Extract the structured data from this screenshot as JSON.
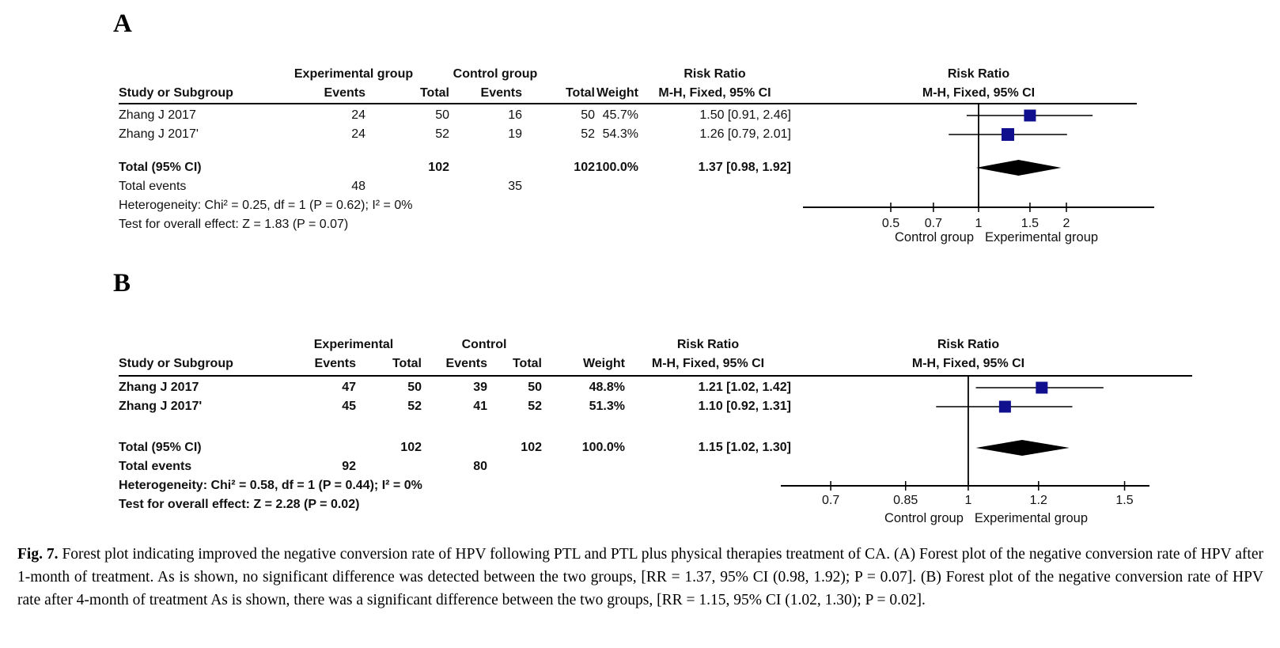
{
  "caption": {
    "tag": "Fig. 7.",
    "text": "Forest plot indicating improved the negative conversion rate of HPV following PTL and PTL plus physical therapies treatment of CA. (A) Forest plot of the negative conversion rate of HPV after 1-month of treatment. As is shown, no significant difference was detected between the two groups, [RR = 1.37, 95% CI (0.98, 1.92); P = 0.07]. (B) Forest plot of the negative conversion rate of HPV rate after 4-month of treatment As is shown, there was a significant difference between the two groups, [RR = 1.15, 95% CI (1.02, 1.30); P = 0.02]."
  },
  "colors": {
    "marker": "#10108f",
    "diamond": "#000000",
    "line": "#000000"
  },
  "chart_data": [
    {
      "type": "forest",
      "label": "A",
      "group1": "Experimental group",
      "group2": "Control group",
      "columns": {
        "study": "Study or Subgroup",
        "events1": "Events",
        "total1": "Total",
        "events2": "Events",
        "total2": "Total",
        "weight": "Weight",
        "effect": "Risk Ratio",
        "method": "M-H, Fixed, 95% CI"
      },
      "plot_header1": "Risk Ratio",
      "plot_header2": "M-H, Fixed, 95% CI",
      "studies": [
        {
          "study": "Zhang J 2017",
          "g1_events": "24",
          "g1_total": "50",
          "g2_events": "16",
          "g2_total": "50",
          "weight": "45.7%",
          "weight_value": 45.7,
          "rr_text": "1.50 [0.91, 2.46]",
          "rr": 1.5,
          "ci_low": 0.91,
          "ci_high": 2.46
        },
        {
          "study": "Zhang J 2017'",
          "g1_events": "24",
          "g1_total": "52",
          "g2_events": "19",
          "g2_total": "52",
          "weight": "54.3%",
          "weight_value": 54.3,
          "rr_text": "1.26 [0.79, 2.01]",
          "rr": 1.26,
          "ci_low": 0.79,
          "ci_high": 2.01
        }
      ],
      "total": {
        "label": "Total (95% CI)",
        "g1_total": "102",
        "g2_total": "102",
        "weight": "100.0%",
        "rr_text": "1.37 [0.98, 1.92]",
        "rr": 1.37,
        "ci_low": 0.98,
        "ci_high": 1.92
      },
      "total_events": {
        "label": "Total events",
        "g1": "48",
        "g2": "35"
      },
      "heterogeneity": "Heterogeneity: Chi² = 0.25, df = 1 (P = 0.62); I² = 0%",
      "overall_effect": "Test for overall effect: Z = 1.83 (P = 0.07)",
      "axis": {
        "scale": "log",
        "min": 0.25,
        "max": 4.0,
        "ticks": [
          0.5,
          0.7,
          1,
          1.5,
          2
        ],
        "tick_labels": [
          "0.5",
          "0.7",
          "1",
          "1.5",
          "2"
        ],
        "label_left": "Control group",
        "label_right": "Experimental group"
      }
    },
    {
      "type": "forest",
      "label": "B",
      "group1": "Experimental",
      "group2": "Control",
      "columns": {
        "study": "Study or Subgroup",
        "events1": "Events",
        "total1": "Total",
        "events2": "Events",
        "total2": "Total",
        "weight": "Weight",
        "effect": "Risk Ratio",
        "method": "M-H, Fixed, 95% CI"
      },
      "plot_header1": "Risk Ratio",
      "plot_header2": "M-H, Fixed, 95% CI",
      "studies": [
        {
          "study": "Zhang J 2017",
          "g1_events": "47",
          "g1_total": "50",
          "g2_events": "39",
          "g2_total": "50",
          "weight": "48.8%",
          "weight_value": 48.8,
          "rr_text": "1.21 [1.02, 1.42]",
          "rr": 1.21,
          "ci_low": 1.02,
          "ci_high": 1.42
        },
        {
          "study": "Zhang J 2017'",
          "g1_events": "45",
          "g1_total": "52",
          "g2_events": "41",
          "g2_total": "52",
          "weight": "51.3%",
          "weight_value": 51.3,
          "rr_text": "1.10 [0.92, 1.31]",
          "rr": 1.1,
          "ci_low": 0.92,
          "ci_high": 1.31
        }
      ],
      "total": {
        "label": "Total (95% CI)",
        "g1_total": "102",
        "g2_total": "102",
        "weight": "100.0%",
        "rr_text": "1.15 [1.02, 1.30]",
        "rr": 1.15,
        "ci_low": 1.02,
        "ci_high": 1.3
      },
      "total_events": {
        "label": "Total events",
        "g1": "92",
        "g2": "80"
      },
      "heterogeneity": "Heterogeneity: Chi² = 0.58, df = 1 (P = 0.44); I² = 0%",
      "overall_effect": "Test for overall effect: Z = 2.28 (P = 0.02)",
      "axis": {
        "scale": "log",
        "min": 0.615,
        "max": 1.6,
        "ticks": [
          0.7,
          0.85,
          1,
          1.2,
          1.5
        ],
        "tick_labels": [
          "0.7",
          "0.85",
          "1",
          "1.2",
          "1.5"
        ],
        "label_left": "Control group",
        "label_right": "Experimental group"
      }
    }
  ]
}
